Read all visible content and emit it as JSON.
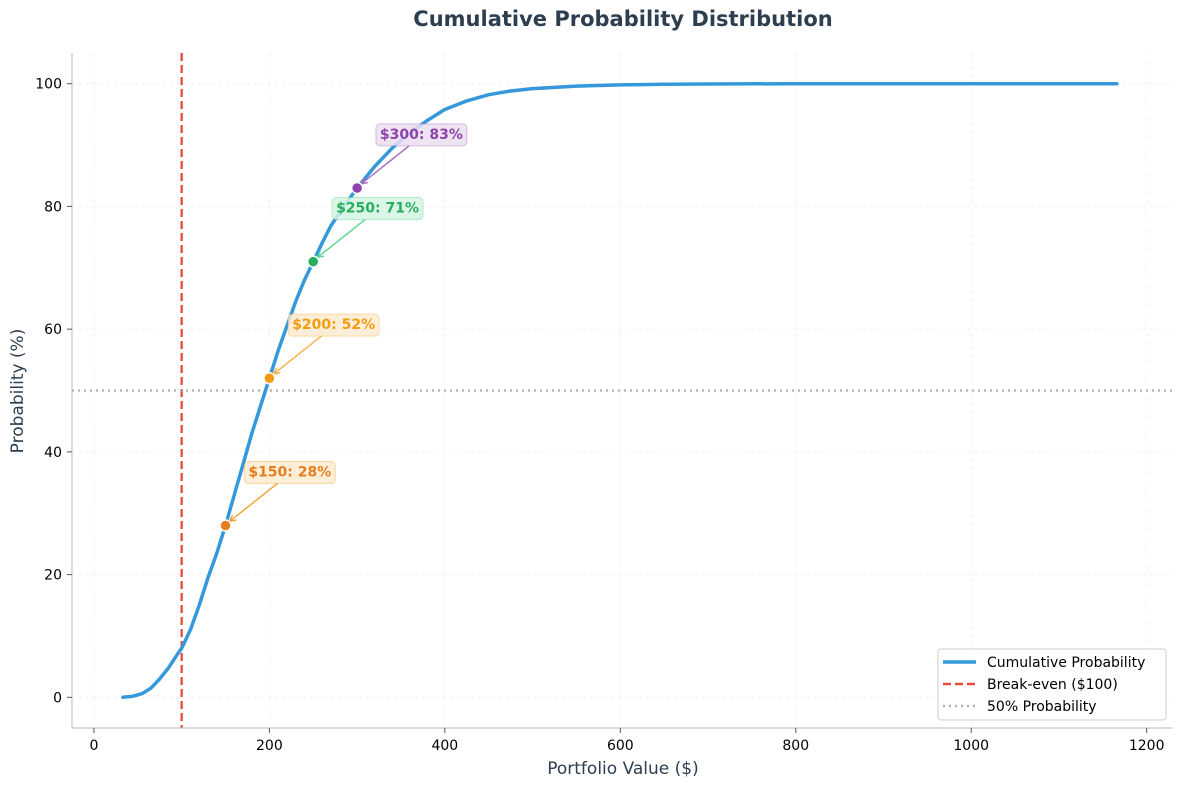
{
  "chart_data": {
    "type": "line",
    "title": "Cumulative Probability Distribution",
    "xlabel": "Portfolio Value ($)",
    "ylabel": "Probability (%)",
    "xlim": [
      -25,
      1230
    ],
    "ylim": [
      -5,
      105
    ],
    "xticks": [
      0,
      200,
      400,
      600,
      800,
      1000,
      1200
    ],
    "yticks": [
      0,
      20,
      40,
      60,
      80,
      100
    ],
    "grid": true,
    "legend_position": "lower-right",
    "series": [
      {
        "name": "Cumulative Probability",
        "color": "#3498db",
        "x": [
          33,
          45,
          55,
          65,
          75,
          85,
          95,
          100,
          110,
          120,
          130,
          140,
          150,
          160,
          170,
          180,
          190,
          200,
          210,
          220,
          230,
          240,
          250,
          260,
          270,
          280,
          290,
          300,
          320,
          340,
          360,
          380,
          400,
          425,
          450,
          475,
          500,
          550,
          600,
          650,
          700,
          800,
          900,
          1000,
          1100,
          1166
        ],
        "y": [
          0,
          0.2,
          0.6,
          1.5,
          3,
          4.8,
          7,
          8,
          11,
          15,
          19.5,
          23.5,
          28,
          33,
          38,
          43,
          47.5,
          52,
          56.5,
          60.5,
          64.5,
          68,
          71,
          74,
          76.8,
          79,
          81,
          83,
          86.5,
          89.5,
          92,
          94,
          95.8,
          97.2,
          98.2,
          98.8,
          99.2,
          99.6,
          99.8,
          99.9,
          99.95,
          100,
          100,
          100,
          100,
          100
        ]
      }
    ],
    "reference_lines": [
      {
        "name": "Break-even ($100)",
        "orientation": "vertical",
        "value": 100,
        "color": "#e74c3c",
        "style": "dashed"
      },
      {
        "name": "50% Probability",
        "orientation": "horizontal",
        "value": 50,
        "color": "#b0b0b0",
        "style": "dotted"
      }
    ],
    "annotations": [
      {
        "label": "$150: 28%",
        "x": 150,
        "y": 28,
        "text_x": 176,
        "text_y": 36,
        "color": "#e67e22",
        "arrow": "#f0a030",
        "bg": "#fdebd0"
      },
      {
        "label": "$200: 52%",
        "x": 200,
        "y": 52,
        "text_x": 226,
        "text_y": 60,
        "color": "#f39c12",
        "arrow": "#f5b041",
        "bg": "#fdebd0"
      },
      {
        "label": "$250: 71%",
        "x": 250,
        "y": 71,
        "text_x": 276,
        "text_y": 79,
        "color": "#27ae60",
        "arrow": "#58d68d",
        "bg": "#d5f5e3"
      },
      {
        "label": "$300: 83%",
        "x": 300,
        "y": 83,
        "text_x": 326,
        "text_y": 91,
        "color": "#8e44ad",
        "arrow": "#a569bd",
        "bg": "#ebdef0"
      }
    ]
  }
}
